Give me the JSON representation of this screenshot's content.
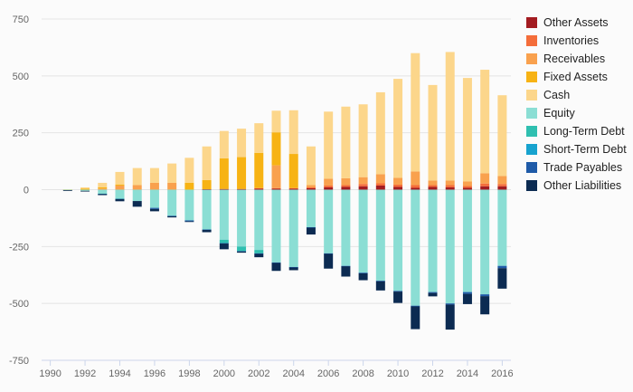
{
  "chart_data": {
    "type": "bar",
    "stacked": true,
    "title": "",
    "xlabel": "",
    "ylabel": "",
    "ylim": [
      -750,
      750
    ],
    "yticks": [
      750,
      500,
      250,
      0,
      -250,
      -500,
      -750
    ],
    "xticks": [
      "1990",
      "1992",
      "1994",
      "1996",
      "1998",
      "2000",
      "2002",
      "2004",
      "2006",
      "2008",
      "2010",
      "2012",
      "2014",
      "2016"
    ],
    "grid": true,
    "legend_position": "right",
    "categories": [
      "1991",
      "1992",
      "1993",
      "1994",
      "1995",
      "1996",
      "1997",
      "1998",
      "1999",
      "2000",
      "2001",
      "2002",
      "2003",
      "2004",
      "2005",
      "2006",
      "2007",
      "2008",
      "2009",
      "2010",
      "2011",
      "2012",
      "2013",
      "2014",
      "2015",
      "2016"
    ],
    "series": [
      {
        "name": "Other Assets",
        "color": "#a31c21",
        "values": [
          0,
          0,
          0,
          0,
          0,
          0,
          0,
          0,
          2,
          3,
          3,
          4,
          4,
          4,
          6,
          10,
          12,
          15,
          18,
          12,
          8,
          12,
          10,
          8,
          15,
          15
        ]
      },
      {
        "name": "Inventories",
        "color": "#f46d3a",
        "values": [
          0,
          0,
          0,
          0,
          0,
          0,
          0,
          0,
          0,
          0,
          0,
          3,
          3,
          3,
          4,
          8,
          8,
          10,
          10,
          10,
          12,
          8,
          10,
          8,
          12,
          10
        ]
      },
      {
        "name": "Receivables",
        "color": "#f9a14e",
        "values": [
          0,
          0,
          5,
          18,
          20,
          30,
          30,
          0,
          0,
          0,
          0,
          0,
          100,
          0,
          10,
          30,
          30,
          30,
          40,
          30,
          60,
          20,
          20,
          20,
          45,
          35
        ]
      },
      {
        "name": "Fixed Assets",
        "color": "#f7b314",
        "values": [
          1,
          5,
          5,
          5,
          0,
          0,
          0,
          30,
          40,
          135,
          140,
          155,
          145,
          150,
          0,
          0,
          0,
          0,
          0,
          0,
          0,
          0,
          0,
          0,
          0,
          0
        ]
      },
      {
        "name": "Cash",
        "color": "#fcd68b",
        "values": [
          1,
          5,
          20,
          55,
          75,
          65,
          85,
          110,
          148,
          120,
          125,
          130,
          95,
          192,
          170,
          295,
          315,
          320,
          360,
          435,
          520,
          420,
          565,
          455,
          455,
          355
        ]
      },
      {
        "name": "Equity",
        "color": "#8bded4",
        "values": [
          -2,
          -5,
          -18,
          -40,
          -50,
          -80,
          -115,
          -135,
          -175,
          -220,
          -250,
          -265,
          -320,
          -340,
          -165,
          -280,
          -335,
          -365,
          -400,
          -445,
          -510,
          -450,
          -500,
          -450,
          -460,
          -335
        ]
      },
      {
        "name": "Long-Term Debt",
        "color": "#2fbfb0",
        "values": [
          0,
          0,
          0,
          0,
          0,
          0,
          0,
          0,
          0,
          -15,
          -20,
          -15,
          0,
          0,
          0,
          0,
          0,
          0,
          0,
          0,
          0,
          0,
          0,
          0,
          0,
          0
        ]
      },
      {
        "name": "Short-Term Debt",
        "color": "#17a3cf",
        "values": [
          0,
          0,
          -1,
          -1,
          0,
          0,
          0,
          0,
          0,
          0,
          0,
          0,
          0,
          0,
          0,
          0,
          0,
          0,
          0,
          0,
          0,
          0,
          0,
          0,
          0,
          0
        ]
      },
      {
        "name": "Trade Payables",
        "color": "#1f5ba8",
        "values": [
          0,
          0,
          0,
          0,
          0,
          -5,
          -2,
          -4,
          -2,
          -2,
          -2,
          -2,
          -2,
          -2,
          -2,
          -2,
          -2,
          -3,
          -3,
          -3,
          -3,
          -4,
          -5,
          -8,
          -8,
          -10
        ]
      },
      {
        "name": "Other Liabilities",
        "color": "#0c2b52",
        "values": [
          -1,
          -3,
          -5,
          -10,
          -25,
          -10,
          -5,
          -3,
          -10,
          -25,
          -5,
          -15,
          -35,
          -12,
          -30,
          -65,
          -45,
          -30,
          -40,
          -50,
          -100,
          -15,
          -110,
          -45,
          -80,
          -90
        ]
      }
    ]
  }
}
